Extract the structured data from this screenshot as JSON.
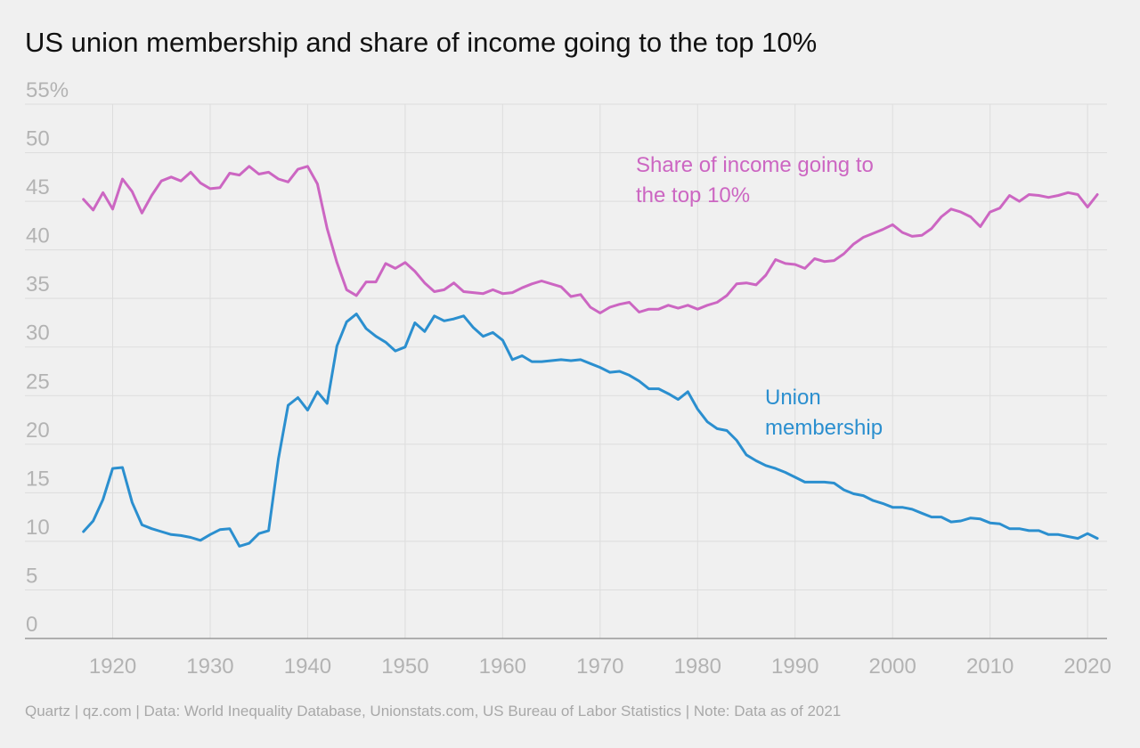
{
  "title": "US union membership and share of income going to the top 10%",
  "source": "Quartz | qz.com | Data: World Inequality Database, Unionstats.com, US Bureau of Labor Statistics | Note: Data as of 2021",
  "colors": {
    "background": "#f0f0f0",
    "income_series": "#cc66c2",
    "union_series": "#2b8fcf",
    "grid": "#dddddd",
    "tick_text": "#b3b3b3"
  },
  "chart_data": {
    "type": "line",
    "title": "US union membership and share of income going to the top 10%",
    "xlabel": "",
    "ylabel": "",
    "xlim": [
      1911,
      2022
    ],
    "ylim": [
      0,
      55
    ],
    "grid": true,
    "y_ticks": [
      {
        "value": 55,
        "label": "55%"
      },
      {
        "value": 50,
        "label": "50"
      },
      {
        "value": 45,
        "label": "45"
      },
      {
        "value": 40,
        "label": "40"
      },
      {
        "value": 35,
        "label": "35"
      },
      {
        "value": 30,
        "label": "30"
      },
      {
        "value": 25,
        "label": "25"
      },
      {
        "value": 20,
        "label": "20"
      },
      {
        "value": 15,
        "label": "15"
      },
      {
        "value": 10,
        "label": "10"
      },
      {
        "value": 5,
        "label": "5"
      },
      {
        "value": 0,
        "label": "0"
      }
    ],
    "x_ticks": [
      {
        "value": 1920,
        "label": "1920"
      },
      {
        "value": 1930,
        "label": "1930"
      },
      {
        "value": 1940,
        "label": "1940"
      },
      {
        "value": 1950,
        "label": "1950"
      },
      {
        "value": 1960,
        "label": "1960"
      },
      {
        "value": 1970,
        "label": "1970"
      },
      {
        "value": 1980,
        "label": "1980"
      },
      {
        "value": 1990,
        "label": "1990"
      },
      {
        "value": 2000,
        "label": "2000"
      },
      {
        "value": 2010,
        "label": "2010"
      },
      {
        "value": 2020,
        "label": "2020"
      }
    ],
    "series": [
      {
        "name": "Share of income going to the top 10%",
        "label_lines": [
          "Share of income going to",
          "the top 10%"
        ],
        "color": "#cc66c2",
        "x": [
          1917,
          1918,
          1919,
          1920,
          1921,
          1922,
          1923,
          1924,
          1925,
          1926,
          1927,
          1928,
          1929,
          1930,
          1931,
          1932,
          1933,
          1934,
          1935,
          1936,
          1937,
          1938,
          1939,
          1940,
          1941,
          1942,
          1943,
          1944,
          1945,
          1946,
          1947,
          1948,
          1949,
          1950,
          1951,
          1952,
          1953,
          1954,
          1955,
          1956,
          1957,
          1958,
          1959,
          1960,
          1961,
          1962,
          1963,
          1964,
          1965,
          1966,
          1967,
          1968,
          1969,
          1970,
          1971,
          1972,
          1973,
          1974,
          1975,
          1976,
          1977,
          1978,
          1979,
          1980,
          1981,
          1982,
          1983,
          1984,
          1985,
          1986,
          1987,
          1988,
          1989,
          1990,
          1991,
          1992,
          1993,
          1994,
          1995,
          1996,
          1997,
          1998,
          1999,
          2000,
          2001,
          2002,
          2003,
          2004,
          2005,
          2006,
          2007,
          2008,
          2009,
          2010,
          2011,
          2012,
          2013,
          2014,
          2015,
          2016,
          2017,
          2018,
          2019,
          2020,
          2021
        ],
        "y": [
          45.2,
          44.1,
          45.9,
          44.2,
          47.3,
          46.0,
          43.8,
          45.6,
          47.1,
          47.5,
          47.1,
          48.0,
          46.9,
          46.3,
          46.4,
          47.9,
          47.7,
          48.6,
          47.8,
          48.0,
          47.3,
          47.0,
          48.3,
          48.6,
          46.8,
          42.2,
          38.7,
          35.9,
          35.3,
          36.7,
          36.7,
          38.6,
          38.1,
          38.7,
          37.8,
          36.6,
          35.7,
          35.9,
          36.6,
          35.7,
          35.6,
          35.5,
          35.9,
          35.5,
          35.6,
          36.1,
          36.5,
          36.8,
          36.5,
          36.2,
          35.2,
          35.4,
          34.1,
          33.5,
          34.1,
          34.4,
          34.6,
          33.6,
          33.9,
          33.9,
          34.3,
          34.0,
          34.3,
          33.9,
          34.3,
          34.6,
          35.3,
          36.5,
          36.6,
          36.4,
          37.4,
          39.0,
          38.6,
          38.5,
          38.1,
          39.1,
          38.8,
          38.9,
          39.6,
          40.6,
          41.3,
          41.7,
          42.1,
          42.6,
          41.8,
          41.4,
          41.5,
          42.2,
          43.4,
          44.2,
          43.9,
          43.4,
          42.4,
          43.9,
          44.3,
          45.6,
          45.0,
          45.7,
          45.6,
          45.4,
          45.6,
          45.9,
          45.7,
          44.4,
          45.7
        ]
      },
      {
        "name": "Union membership",
        "label_lines": [
          "Union",
          "membership"
        ],
        "color": "#2b8fcf",
        "x": [
          1917,
          1918,
          1919,
          1920,
          1921,
          1922,
          1923,
          1924,
          1925,
          1926,
          1927,
          1928,
          1929,
          1930,
          1931,
          1932,
          1933,
          1934,
          1935,
          1936,
          1937,
          1938,
          1939,
          1940,
          1941,
          1942,
          1943,
          1944,
          1945,
          1946,
          1947,
          1948,
          1949,
          1950,
          1951,
          1952,
          1953,
          1954,
          1955,
          1956,
          1957,
          1958,
          1959,
          1960,
          1961,
          1962,
          1963,
          1964,
          1965,
          1966,
          1967,
          1968,
          1969,
          1970,
          1971,
          1972,
          1973,
          1974,
          1975,
          1976,
          1977,
          1978,
          1979,
          1980,
          1981,
          1982,
          1983,
          1984,
          1985,
          1986,
          1987,
          1988,
          1989,
          1990,
          1991,
          1992,
          1993,
          1994,
          1995,
          1996,
          1997,
          1998,
          1999,
          2000,
          2001,
          2002,
          2003,
          2004,
          2005,
          2006,
          2007,
          2008,
          2009,
          2010,
          2011,
          2012,
          2013,
          2014,
          2015,
          2016,
          2017,
          2018,
          2019,
          2020,
          2021
        ],
        "y": [
          11.0,
          12.1,
          14.3,
          17.5,
          17.6,
          14.0,
          11.7,
          11.3,
          11.0,
          10.7,
          10.6,
          10.4,
          10.1,
          10.7,
          11.2,
          11.3,
          9.5,
          9.8,
          10.8,
          11.1,
          18.5,
          24.0,
          24.8,
          23.5,
          25.4,
          24.2,
          30.1,
          32.6,
          33.4,
          31.9,
          31.1,
          30.5,
          29.6,
          30.0,
          32.5,
          31.6,
          33.2,
          32.7,
          32.9,
          33.2,
          32.0,
          31.1,
          31.5,
          30.7,
          28.7,
          29.1,
          28.5,
          28.5,
          28.6,
          28.7,
          28.6,
          28.7,
          28.3,
          27.9,
          27.4,
          27.5,
          27.1,
          26.5,
          25.7,
          25.7,
          25.2,
          24.6,
          25.4,
          23.6,
          22.3,
          21.6,
          21.4,
          20.4,
          18.9,
          18.3,
          17.8,
          17.5,
          17.1,
          16.6,
          16.1,
          16.1,
          16.1,
          16.0,
          15.3,
          14.9,
          14.7,
          14.2,
          13.9,
          13.5,
          13.5,
          13.3,
          12.9,
          12.5,
          12.5,
          12.0,
          12.1,
          12.4,
          12.3,
          11.9,
          11.8,
          11.3,
          11.3,
          11.1,
          11.1,
          10.7,
          10.7,
          10.5,
          10.3,
          10.8,
          10.3
        ]
      }
    ]
  }
}
